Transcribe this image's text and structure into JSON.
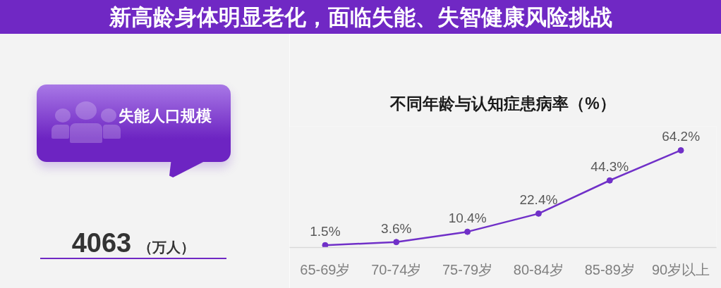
{
  "chart_data": [
    {
      "type": "other",
      "title": "新高龄身体明显老化，面临失能、失智健康风险挑战"
    },
    {
      "type": "other",
      "title": "失能人口规模",
      "annotations": [
        "4063",
        "（万人）"
      ]
    },
    {
      "type": "line",
      "title": "不同年龄与认知症患病率（%）",
      "categories": [
        "65-69岁",
        "70-74岁",
        "75-79岁",
        "80-84岁",
        "85-89岁",
        "90岁以上"
      ],
      "values": [
        1.5,
        3.6,
        10.4,
        22.4,
        44.3,
        64.2
      ],
      "value_labels": [
        "1.5%",
        "3.6%",
        "10.4%",
        "22.4%",
        "44.3%",
        "64.2%"
      ],
      "color": "#7030c8",
      "marker": "circle",
      "line_style": "solid",
      "ylim": [
        0,
        80
      ],
      "tick_labels": "x"
    }
  ]
}
